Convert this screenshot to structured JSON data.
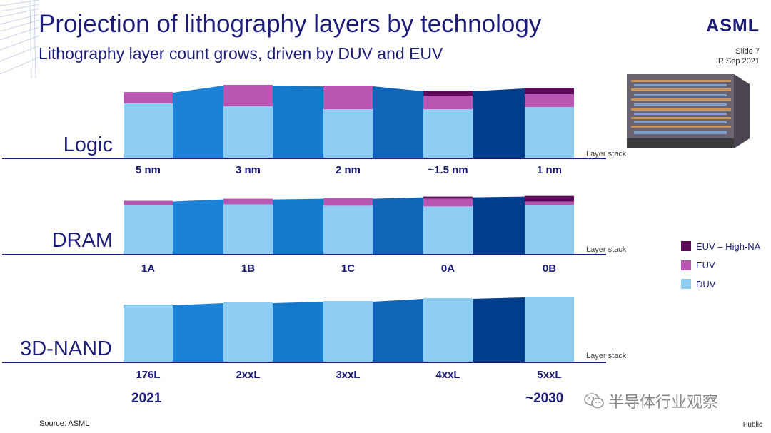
{
  "header": {
    "title": "Projection of lithography layers by technology",
    "subtitle": "Lithography layer count grows, driven by DUV and EUV",
    "logo": "ASML",
    "slide": "Slide 7",
    "date": "IR Sep 2021"
  },
  "colors": {
    "duv": "#8dcdf2",
    "euv": "#b955b3",
    "euv_high_na": "#5e0a5a",
    "band_colors": [
      "#1c82d8",
      "#167acc",
      "#1065b8",
      "#003d8a"
    ],
    "axis": "#1e1e78"
  },
  "chart_data": [
    {
      "type": "bar",
      "stacked": true,
      "title": "Logic",
      "axis_label": "Layer stack",
      "categories": [
        "5 nm",
        "3 nm",
        "2 nm",
        "~1.5 nm",
        "1 nm"
      ],
      "series": [
        {
          "name": "DUV",
          "values": [
            76,
            72,
            68,
            68,
            71
          ]
        },
        {
          "name": "EUV",
          "values": [
            16,
            30,
            33,
            19,
            18
          ]
        },
        {
          "name": "EUV – High-NA",
          "values": [
            0,
            0,
            0,
            7,
            9
          ]
        }
      ]
    },
    {
      "type": "bar",
      "stacked": true,
      "title": "DRAM",
      "axis_label": "Layer stack",
      "categories": [
        "1A",
        "1B",
        "1C",
        "0A",
        "0B"
      ],
      "series": [
        {
          "name": "DUV",
          "values": [
            70,
            71,
            69,
            68,
            70
          ]
        },
        {
          "name": "EUV",
          "values": [
            6,
            8,
            11,
            11,
            5
          ]
        },
        {
          "name": "EUV – High-NA",
          "values": [
            0,
            0,
            0,
            3,
            8
          ]
        }
      ]
    },
    {
      "type": "bar",
      "stacked": true,
      "title": "3D-NAND",
      "axis_label": "Layer stack",
      "categories": [
        "176L",
        "2xxL",
        "3xxL",
        "4xxL",
        "5xxL"
      ],
      "series": [
        {
          "name": "DUV",
          "values": [
            80,
            83,
            85,
            89,
            91
          ]
        },
        {
          "name": "EUV",
          "values": [
            0,
            0,
            0,
            0,
            0
          ]
        },
        {
          "name": "EUV – High-NA",
          "values": [
            0,
            0,
            0,
            0,
            0
          ]
        }
      ]
    }
  ],
  "legend": {
    "items": [
      {
        "label": "EUV – High-NA",
        "color": "#5e0a5a"
      },
      {
        "label": "EUV",
        "color": "#b955b3"
      },
      {
        "label": "DUV",
        "color": "#8dcdf2"
      }
    ]
  },
  "years": {
    "start": "2021",
    "end": "~2030"
  },
  "footer": {
    "source": "Source: ASML",
    "classification": "Public"
  },
  "watermark": {
    "text": "半导体行业观察"
  }
}
